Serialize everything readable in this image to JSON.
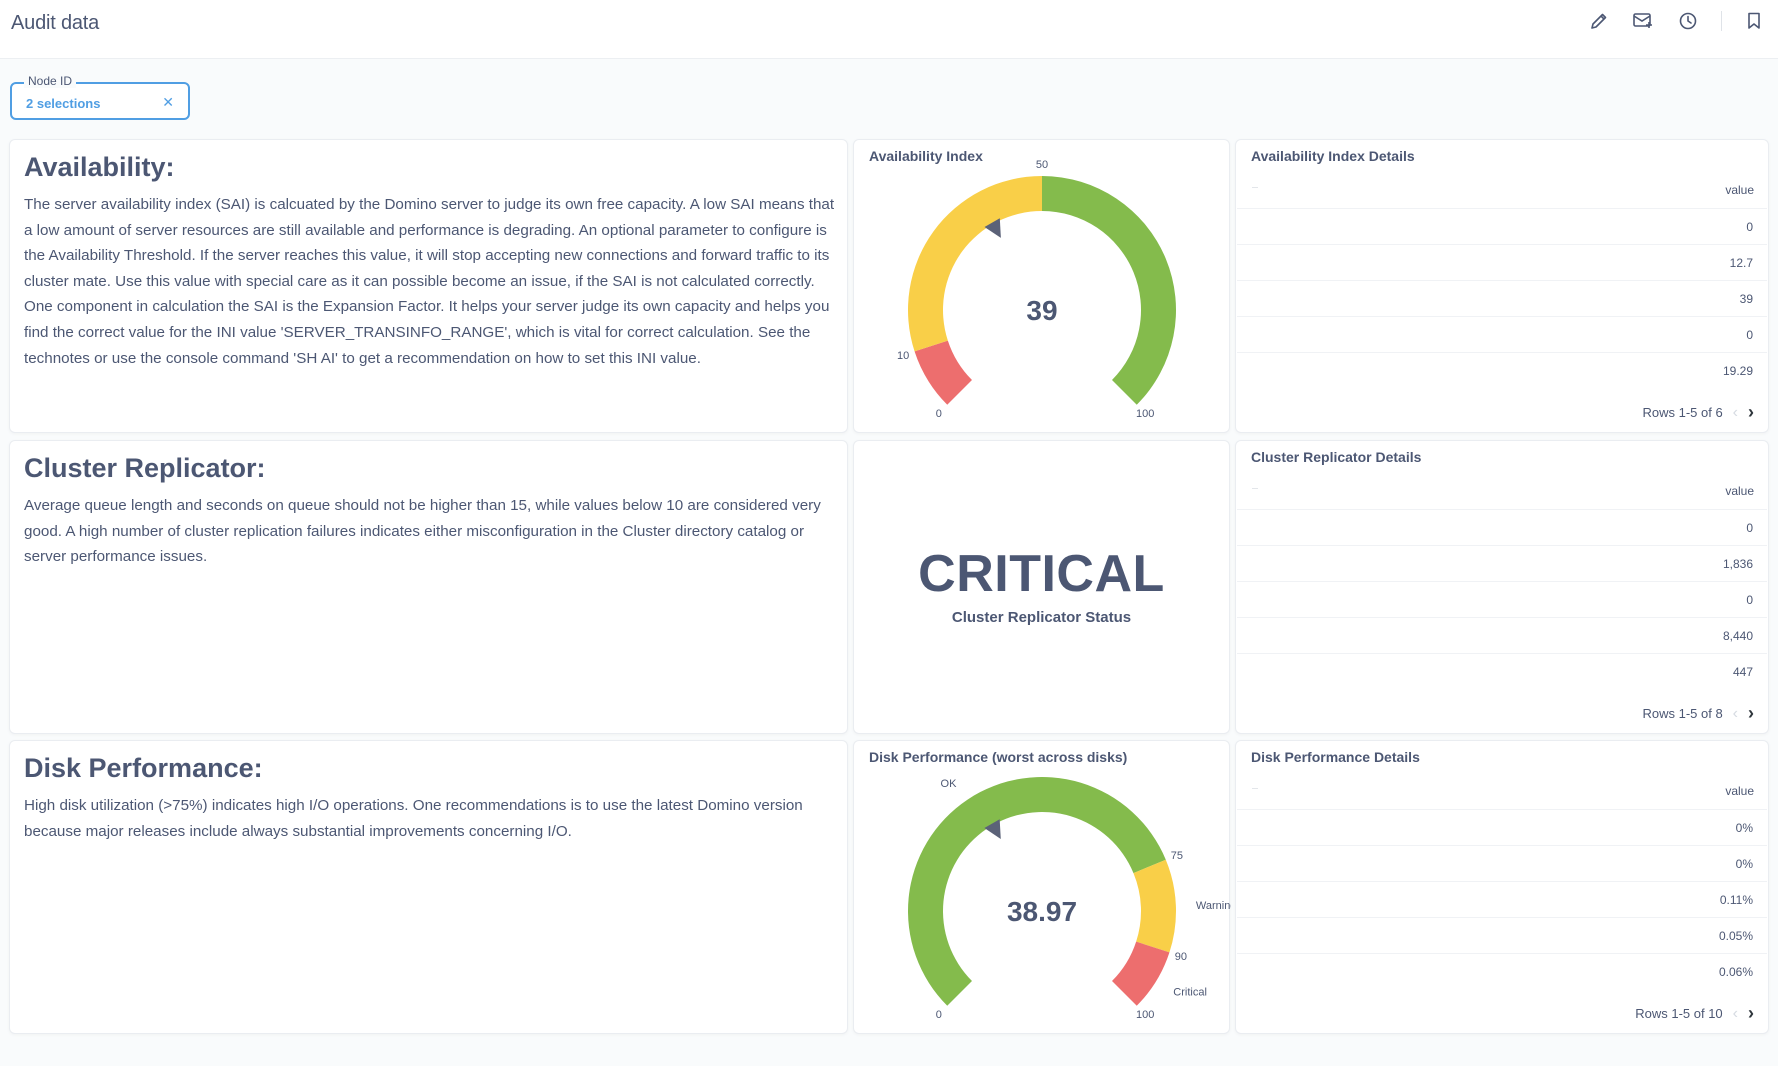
{
  "header": {
    "title": "Audit data"
  },
  "filter": {
    "label": "Node ID",
    "value": "2 selections"
  },
  "rows": [
    {
      "text": {
        "heading": "Availability:",
        "body": "The server availability index (SAI) is calcuated by the Domino server to judge its own free capacity. A low SAI means that a low amount of server resources are still available and performance is degrading. An optional parameter to configure is the Availability Threshold. If the server reaches this value, it will stop accepting new connections and forward traffic to its cluster mate. Use this value with special care as it can possible become an issue, if the SAI is not calculated correctly. One component in calculation the SAI is the Expansion Factor. It helps your server judge its own capacity and helps you find the correct value for the INI value 'SERVER_TRANSINFO_RANGE', which is vital for correct calculation. See the technotes or use the console command 'SH AI' to get a recommendation on how to set this INI value."
      },
      "gauge": {
        "title": "Availability Index",
        "value_label": "39",
        "value": 39,
        "min": 0,
        "max": 100,
        "segments": [
          {
            "from": 0,
            "to": 10,
            "color": "#ed6e6e"
          },
          {
            "from": 10,
            "to": 50,
            "color": "#f9cf48"
          },
          {
            "from": 50,
            "to": 100,
            "color": "#84bb4c"
          }
        ],
        "ticks": [
          {
            "value": 0,
            "label": "0"
          },
          {
            "value": 10,
            "label": "10"
          },
          {
            "value": 50,
            "label": "50"
          },
          {
            "value": 100,
            "label": "100"
          }
        ]
      },
      "table": {
        "title": "Availability Index Details",
        "column": "value",
        "values": [
          "0",
          "12.7",
          "39",
          "0",
          "19.29"
        ],
        "pager": "Rows 1-5 of 6"
      }
    },
    {
      "text": {
        "heading": "Cluster Replicator:",
        "body": "Average queue length and seconds on queue should not be higher than 15, while values below 10 are considered very good. A high number of cluster replication failures indicates either misconfiguration in the Cluster directory catalog or server performance issues."
      },
      "scalar": {
        "value": "CRITICAL",
        "label": "Cluster Replicator Status"
      },
      "table": {
        "title": "Cluster Replicator Details",
        "column": "value",
        "values": [
          "0",
          "1,836",
          "0",
          "8,440",
          "447"
        ],
        "pager": "Rows 1-5 of 8"
      }
    },
    {
      "text": {
        "heading": "Disk Performance:",
        "body": "High disk utilization (>75%) indicates high I/O operations. One recommendations is to use the latest Domino version because major releases include always substantial improvements concerning I/O."
      },
      "gauge": {
        "title": "Disk Performance (worst across disks)",
        "value_label": "38.97",
        "value": 38.97,
        "min": 0,
        "max": 100,
        "segments": [
          {
            "from": 0,
            "to": 75,
            "color": "#84bb4c",
            "label": "OK"
          },
          {
            "from": 75,
            "to": 90,
            "color": "#f9cf48",
            "label": "Warning"
          },
          {
            "from": 90,
            "to": 100,
            "color": "#ed6e6e",
            "label": "Critical"
          }
        ],
        "ticks": [
          {
            "value": 0,
            "label": "0"
          },
          {
            "value": 75,
            "label": "75"
          },
          {
            "value": 90,
            "label": "90"
          },
          {
            "value": 100,
            "label": "100"
          }
        ]
      },
      "table": {
        "title": "Disk Performance Details",
        "column": "value",
        "values": [
          "0%",
          "0%",
          "0.11%",
          "0.05%",
          "0.06%"
        ],
        "pager": "Rows 1-5 of 10"
      }
    }
  ],
  "icons": [
    "pencil-icon",
    "subscription-icon",
    "history-icon",
    "bookmark-icon",
    "close-icon",
    "chevron-left-icon",
    "chevron-right-icon",
    "needle-arrow-icon"
  ]
}
